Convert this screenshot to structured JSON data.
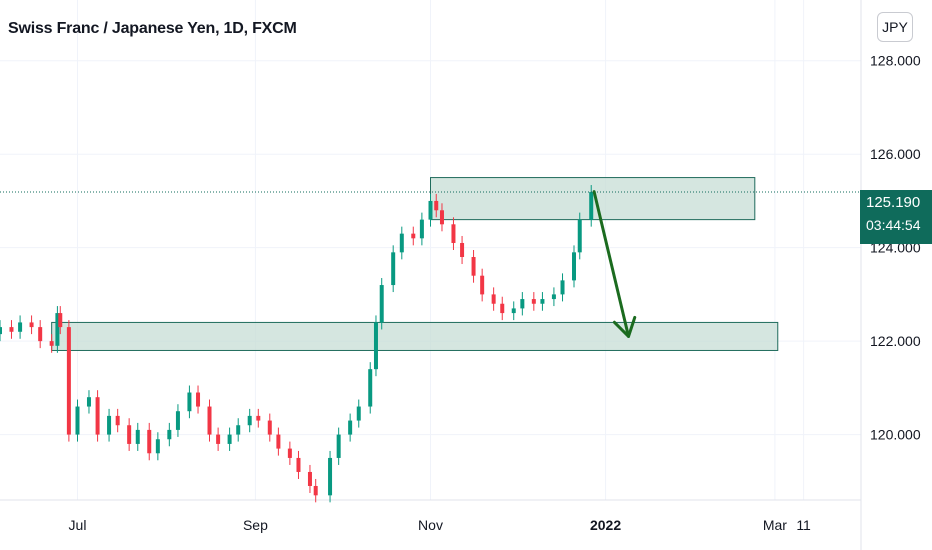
{
  "header": {
    "title": "Swiss Franc / Japanese Yen, 1D, FXCM"
  },
  "currency_button": {
    "label": "JPY"
  },
  "last_price_badge": {
    "price": "125.190",
    "countdown": "03:44:54"
  },
  "colors": {
    "up": "#089981",
    "down": "#f23645",
    "zone_fill": "#c7ddd6",
    "zone_stroke": "#1f6b5c",
    "arrow": "#1b6b1f",
    "price_line": "#0f6b5b",
    "axis_text": "#131722"
  },
  "chart_data": {
    "type": "candlestick",
    "title": "Swiss Franc / Japanese Yen, 1D, FXCM",
    "ylim": [
      118.6,
      129.3
    ],
    "y_ticks": [
      "128.000",
      "126.000",
      "124.000",
      "122.000",
      "120.000"
    ],
    "y_tick_values": [
      128,
      126,
      124,
      122,
      120
    ],
    "x_ticks": [
      "Jul",
      "Sep",
      "Nov",
      "2022",
      "Mar",
      "11"
    ],
    "x_tick_dates": [
      "2021-07-01",
      "2021-09-01",
      "2021-11-01",
      "2022-01-01",
      "2022-03-01",
      "2022-03-11"
    ],
    "xlim": [
      "2021-06-04",
      "2022-03-31"
    ],
    "grid": true,
    "last_price": 125.19,
    "closes": [
      [
        "2021-06-04",
        122.3
      ],
      [
        "2021-06-08",
        122.2
      ],
      [
        "2021-06-11",
        122.4
      ],
      [
        "2021-06-15",
        122.3
      ],
      [
        "2021-06-18",
        122.0
      ],
      [
        "2021-06-22",
        121.9
      ],
      [
        "2021-06-24",
        122.6
      ],
      [
        "2021-06-25",
        122.3
      ],
      [
        "2021-06-28",
        120.0
      ],
      [
        "2021-07-01",
        120.6
      ],
      [
        "2021-07-05",
        120.8
      ],
      [
        "2021-07-08",
        120.0
      ],
      [
        "2021-07-12",
        120.4
      ],
      [
        "2021-07-15",
        120.2
      ],
      [
        "2021-07-19",
        119.8
      ],
      [
        "2021-07-22",
        120.1
      ],
      [
        "2021-07-26",
        119.6
      ],
      [
        "2021-07-29",
        119.9
      ],
      [
        "2021-08-02",
        120.1
      ],
      [
        "2021-08-05",
        120.5
      ],
      [
        "2021-08-09",
        120.9
      ],
      [
        "2021-08-12",
        120.6
      ],
      [
        "2021-08-16",
        120.0
      ],
      [
        "2021-08-19",
        119.8
      ],
      [
        "2021-08-23",
        120.0
      ],
      [
        "2021-08-26",
        120.2
      ],
      [
        "2021-08-30",
        120.4
      ],
      [
        "2021-09-02",
        120.3
      ],
      [
        "2021-09-06",
        120.0
      ],
      [
        "2021-09-09",
        119.7
      ],
      [
        "2021-09-13",
        119.5
      ],
      [
        "2021-09-16",
        119.2
      ],
      [
        "2021-09-20",
        118.9
      ],
      [
        "2021-09-22",
        118.7
      ],
      [
        "2021-09-27",
        119.5
      ],
      [
        "2021-09-30",
        120.0
      ],
      [
        "2021-10-04",
        120.3
      ],
      [
        "2021-10-07",
        120.6
      ],
      [
        "2021-10-11",
        121.4
      ],
      [
        "2021-10-13",
        122.4
      ],
      [
        "2021-10-15",
        123.2
      ],
      [
        "2021-10-19",
        123.9
      ],
      [
        "2021-10-22",
        124.3
      ],
      [
        "2021-10-26",
        124.2
      ],
      [
        "2021-10-29",
        124.6
      ],
      [
        "2021-11-01",
        125.0
      ],
      [
        "2021-11-03",
        124.8
      ],
      [
        "2021-11-05",
        124.5
      ],
      [
        "2021-11-09",
        124.1
      ],
      [
        "2021-11-12",
        123.8
      ],
      [
        "2021-11-16",
        123.4
      ],
      [
        "2021-11-19",
        123.0
      ],
      [
        "2021-11-23",
        122.8
      ],
      [
        "2021-11-26",
        122.6
      ],
      [
        "2021-11-30",
        122.7
      ],
      [
        "2021-12-03",
        122.9
      ],
      [
        "2021-12-07",
        122.8
      ],
      [
        "2021-12-10",
        122.9
      ],
      [
        "2021-12-14",
        123.0
      ],
      [
        "2021-12-17",
        123.3
      ],
      [
        "2021-12-21",
        123.9
      ],
      [
        "2021-12-23",
        124.6
      ],
      [
        "2021-12-27",
        125.19
      ]
    ],
    "annotations": [
      {
        "type": "resistance-zone",
        "from": "2021-11-01",
        "to": "2022-02-22",
        "low": 124.6,
        "high": 125.5
      },
      {
        "type": "support-zone",
        "from": "2021-06-22",
        "to": "2022-03-02",
        "low": 121.8,
        "high": 122.4
      },
      {
        "type": "arrow",
        "from": [
          "2021-12-28",
          125.2
        ],
        "to": [
          "2022-01-09",
          122.1
        ]
      }
    ]
  }
}
